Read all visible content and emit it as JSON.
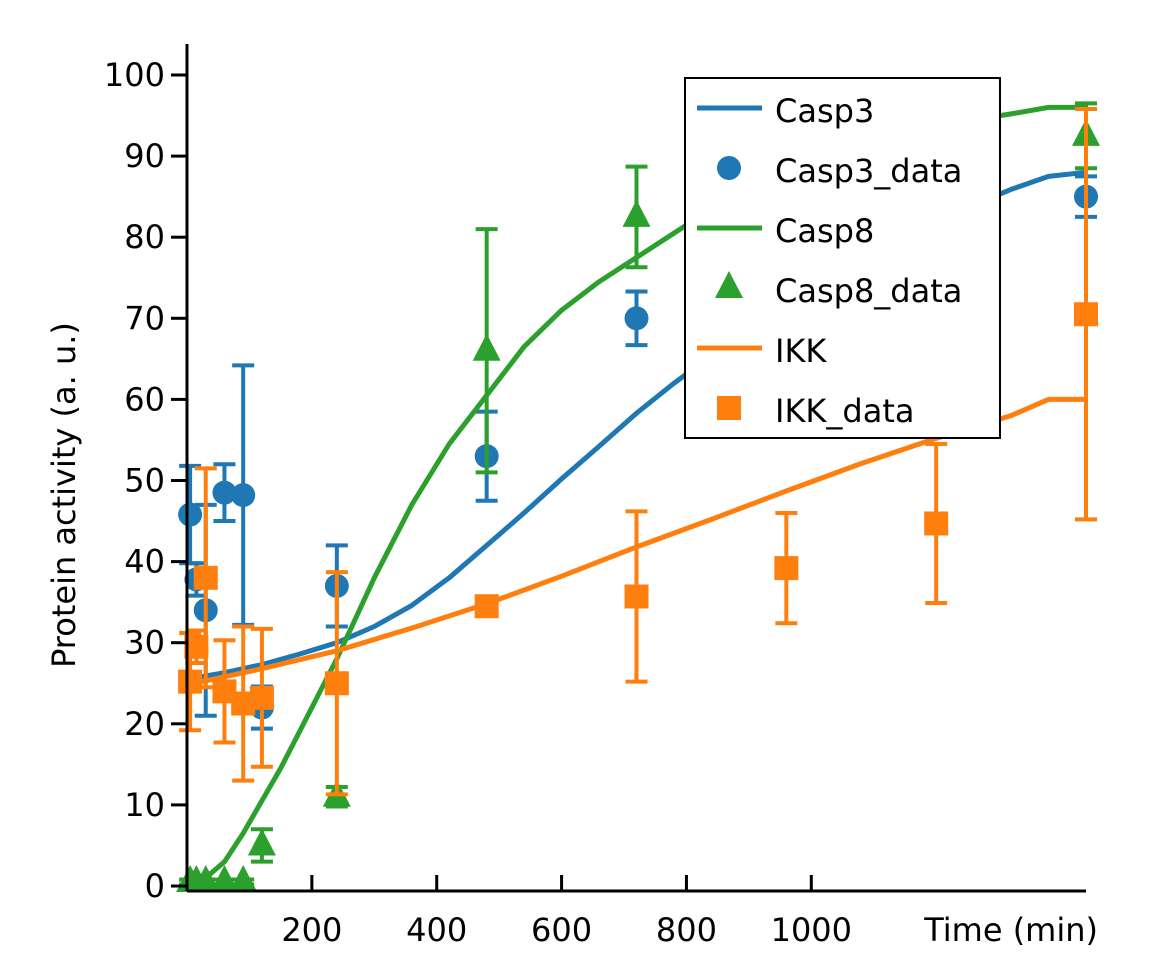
{
  "chart_data": {
    "type": "line",
    "xlabel": "Time (min)",
    "ylabel": "Protein activity (a. u.)",
    "xlim": [
      0,
      1440
    ],
    "ylim": [
      0,
      100
    ],
    "xticks": [
      200,
      400,
      600,
      800,
      1000
    ],
    "xtick_labels": [
      "200",
      "400",
      "600",
      "800",
      "1000"
    ],
    "yticks": [
      0,
      10,
      20,
      30,
      40,
      50,
      60,
      70,
      80,
      90,
      100
    ],
    "ytick_labels": [
      "0",
      "10",
      "20",
      "30",
      "40",
      "50",
      "60",
      "70",
      "80",
      "90",
      "100"
    ],
    "grid": false,
    "legend_position": "top-right",
    "colors": {
      "Casp3": "#1f77b4",
      "Casp8": "#2ca02c",
      "IKK": "#ff7f0e"
    },
    "series": [
      {
        "name": "Casp3",
        "kind": "line",
        "color": "#1f77b4",
        "x": [
          0,
          60,
          120,
          180,
          240,
          300,
          360,
          420,
          480,
          540,
          600,
          660,
          720,
          780,
          840,
          900,
          960,
          1020,
          1080,
          1140,
          1200,
          1260,
          1320,
          1380,
          1440
        ],
        "y": [
          25.5,
          26.3,
          27.3,
          28.6,
          30.0,
          32.0,
          34.6,
          38.0,
          42.0,
          46.0,
          50.2,
          54.2,
          58.3,
          62.0,
          65.4,
          68.8,
          71.8,
          74.5,
          77.0,
          79.6,
          82.0,
          84.0,
          85.9,
          87.5,
          88.0
        ]
      },
      {
        "name": "Casp3_data",
        "kind": "marker",
        "marker": "circle",
        "color": "#1f77b4",
        "x": [
          5,
          15,
          30,
          60,
          90,
          120,
          240,
          480,
          720,
          1440
        ],
        "y": [
          45.8,
          37.8,
          34.0,
          48.5,
          48.2,
          22.0,
          37.0,
          53.0,
          70.0,
          85.0
        ],
        "err": [
          6.0,
          2.0,
          13.0,
          3.5,
          16.0,
          2.6,
          5.0,
          5.5,
          3.3,
          2.5
        ]
      },
      {
        "name": "Casp8",
        "kind": "line",
        "color": "#2ca02c",
        "x": [
          0,
          30,
          60,
          90,
          120,
          150,
          180,
          210,
          240,
          270,
          300,
          360,
          420,
          480,
          540,
          600,
          660,
          720,
          780,
          840,
          900,
          960,
          1020,
          1080,
          1140,
          1200,
          1260,
          1320,
          1380,
          1440
        ],
        "y": [
          0.0,
          1.0,
          3.0,
          6.5,
          10.5,
          14.5,
          19.0,
          23.5,
          28.0,
          33.0,
          38.0,
          47.0,
          54.5,
          60.5,
          66.5,
          71.0,
          74.5,
          77.5,
          80.5,
          83.5,
          86.0,
          88.0,
          89.5,
          91.0,
          92.5,
          93.5,
          94.5,
          95.2,
          96.0,
          96.0
        ]
      },
      {
        "name": "Casp8_data",
        "kind": "marker",
        "marker": "triangle",
        "color": "#2ca02c",
        "x": [
          5,
          15,
          30,
          60,
          90,
          120,
          240,
          480,
          720,
          1440
        ],
        "y": [
          0.5,
          0.5,
          0.5,
          0.5,
          0.5,
          5.0,
          11.0,
          66.0,
          82.5,
          92.5
        ],
        "err": [
          0.3,
          0.3,
          0.3,
          0.3,
          0.3,
          2.0,
          1.2,
          15.0,
          6.2,
          4.0
        ]
      },
      {
        "name": "IKK",
        "kind": "line",
        "color": "#ff7f0e",
        "x": [
          0,
          120,
          240,
          360,
          480,
          600,
          720,
          840,
          960,
          1080,
          1200,
          1320,
          1380,
          1440
        ],
        "y": [
          24.8,
          26.8,
          29.0,
          31.8,
          34.8,
          38.2,
          41.8,
          45.2,
          48.7,
          52.1,
          55.2,
          58.0,
          60.0,
          60.0
        ]
      },
      {
        "name": "IKK_data",
        "kind": "marker",
        "marker": "square",
        "color": "#ff7f0e",
        "x": [
          5,
          15,
          30,
          60,
          90,
          120,
          240,
          480,
          720,
          960,
          1200,
          1440
        ],
        "y": [
          25.2,
          29.5,
          38.0,
          24.0,
          22.5,
          23.2,
          25.0,
          34.5,
          35.7,
          39.2,
          44.7,
          70.5
        ],
        "err": [
          6.0,
          2.0,
          13.5,
          6.3,
          9.5,
          8.5,
          13.7,
          0.5,
          10.5,
          6.8,
          9.8,
          25.3
        ]
      }
    ],
    "legend": [
      "Casp3",
      "Casp3_data",
      "Casp8",
      "Casp8_data",
      "IKK",
      "IKK_data"
    ]
  }
}
